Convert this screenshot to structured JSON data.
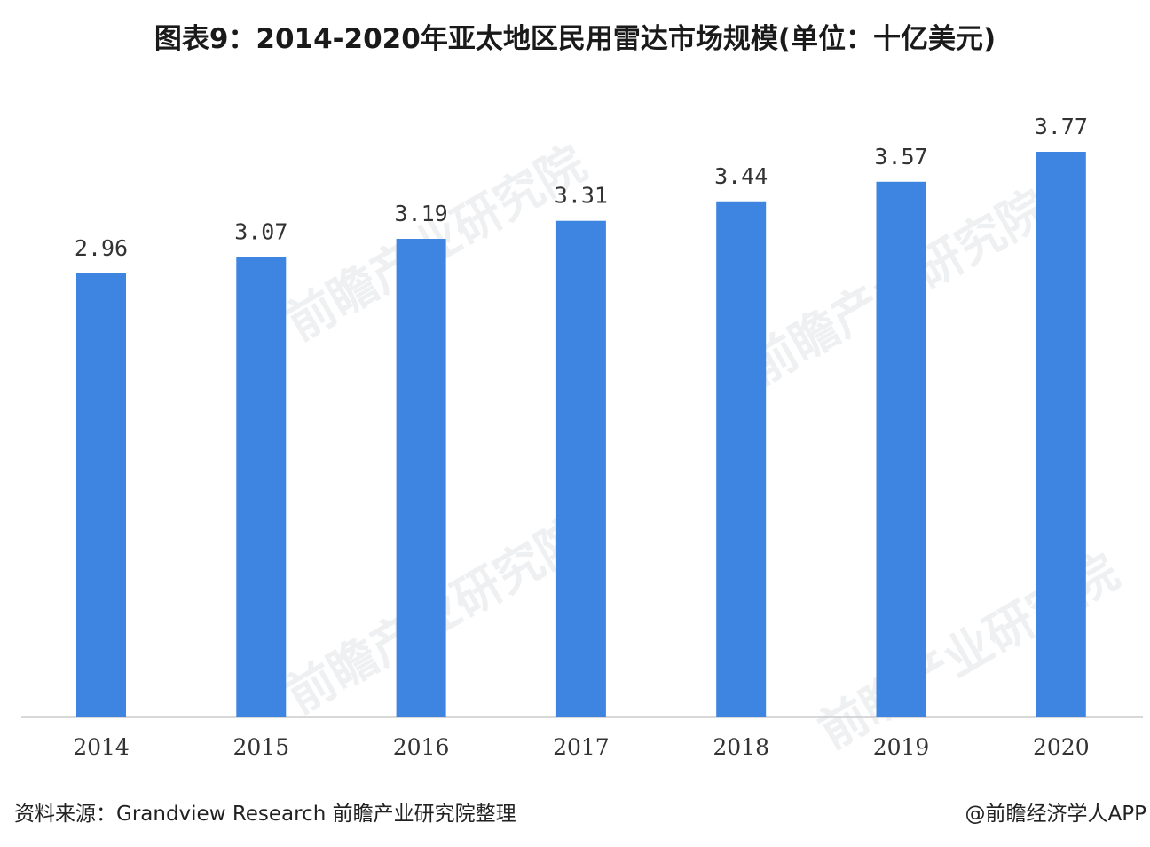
{
  "title": "图表9：2014-2020年亚太地区民用雷达市场规模(单位：十亿美元)",
  "source": "资料来源：Grandview Research 前瞻产业研究院整理",
  "credit": "@前瞻经济学人APP",
  "watermark_text": "前瞻产业研究院",
  "colors": {
    "bar": "#3d85e0",
    "axis": "#cccccc"
  },
  "chart_data": {
    "type": "bar",
    "title": "图表9：2014-2020年亚太地区民用雷达市场规模(单位：十亿美元)",
    "categories": [
      "2014",
      "2015",
      "2016",
      "2017",
      "2018",
      "2019",
      "2020"
    ],
    "values": [
      2.96,
      3.07,
      3.19,
      3.31,
      3.44,
      3.57,
      3.77
    ],
    "value_labels": [
      "2.96",
      "3.07",
      "3.19",
      "3.31",
      "3.44",
      "3.57",
      "3.77"
    ],
    "xlabel": "",
    "ylabel": "",
    "grid": false,
    "data_labels": true,
    "legend": "none"
  }
}
